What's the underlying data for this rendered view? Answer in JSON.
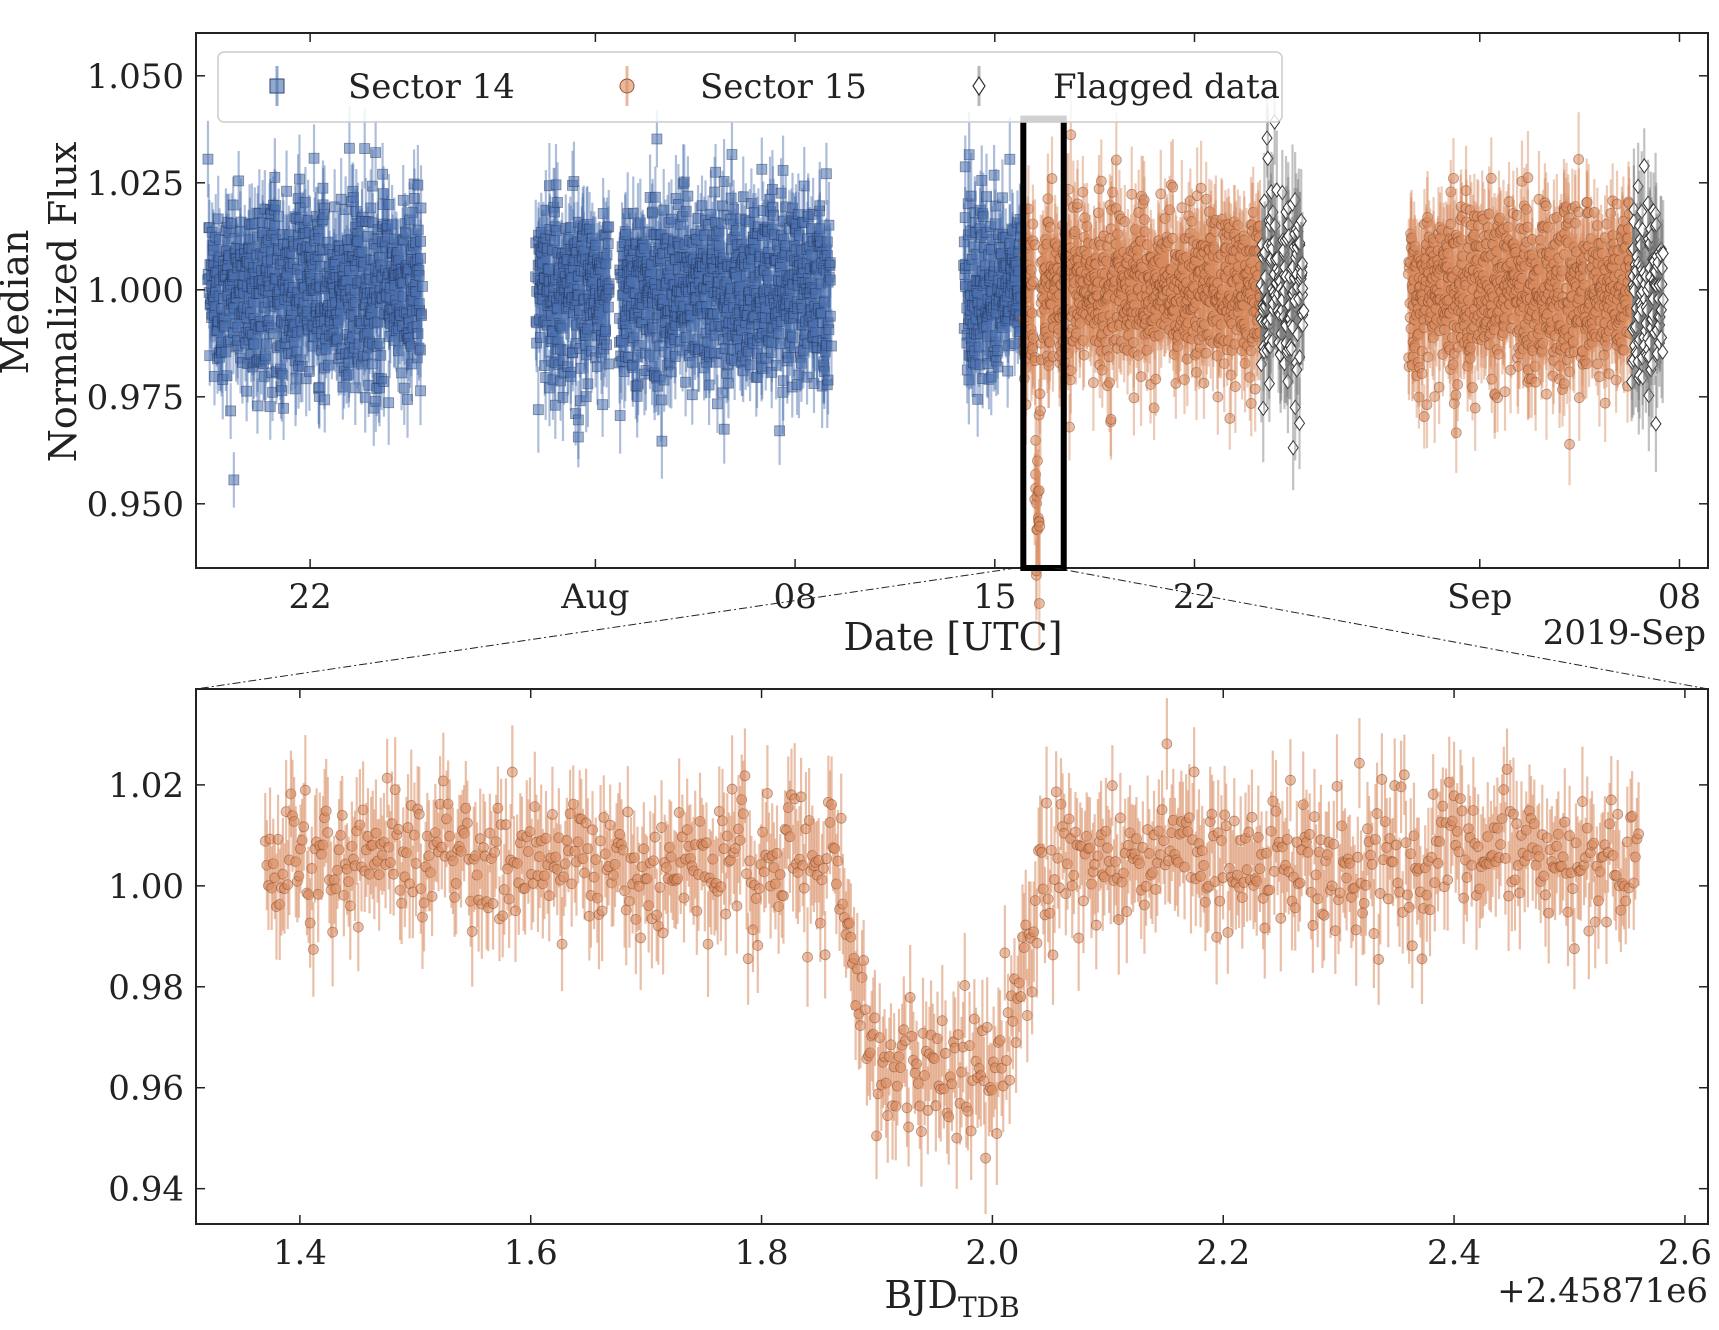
{
  "chart_data": [
    {
      "type": "scatter",
      "title": "",
      "xlabel": "Date [UTC]",
      "ylabel_line1": "Median",
      "ylabel_line2": "Normalized Flux",
      "x_offset_label": "2019-Sep",
      "x_range": [
        "2019-07-18",
        "2019-09-09"
      ],
      "ylim": [
        0.935,
        1.06
      ],
      "xticks": [
        {
          "date": "2019-07-22",
          "label": "22"
        },
        {
          "date": "2019-08-01",
          "label": "Aug"
        },
        {
          "date": "2019-08-08",
          "label": "08"
        },
        {
          "date": "2019-08-15",
          "label": "15"
        },
        {
          "date": "2019-08-22",
          "label": "22"
        },
        {
          "date": "2019-09-01",
          "label": "Sep"
        },
        {
          "date": "2019-09-08",
          "label": "08"
        }
      ],
      "yticks": [
        {
          "value": 0.95,
          "label": "0.950"
        },
        {
          "value": 0.975,
          "label": "0.975"
        },
        {
          "value": 1.0,
          "label": "1.000"
        },
        {
          "value": 1.025,
          "label": "1.025"
        },
        {
          "value": 1.05,
          "label": "1.050"
        }
      ],
      "legend_position": "top",
      "series": [
        {
          "name": "Sector 14",
          "color": "#4a6fae",
          "marker": "square",
          "segments": [
            {
              "start": "2019-07-18T10:00",
              "end": "2019-07-25T22:00"
            },
            {
              "start": "2019-07-29T22:00",
              "end": "2019-08-01T12:00"
            },
            {
              "start": "2019-08-01T20:00",
              "end": "2019-08-09T06:00"
            },
            {
              "start": "2019-08-13T22:00",
              "end": "2019-08-15T22:00"
            }
          ],
          "median_flux": 1.0,
          "scatter_sigma": 0.011,
          "error_bar": 0.008
        },
        {
          "name": "Sector 15",
          "color": "#d88a5e",
          "marker": "circle",
          "segments": [
            {
              "start": "2019-08-16T00:00",
              "end": "2019-08-24T08:00"
            },
            {
              "start": "2019-08-29T12:00",
              "end": "2019-09-06T08:00"
            }
          ],
          "median_flux": 1.0,
          "scatter_sigma": 0.01,
          "error_bar": 0.009,
          "transit": {
            "center": "2019-08-16T12:00",
            "depth": 0.05
          }
        },
        {
          "name": "Flagged data",
          "color": "#444444",
          "marker": "diamond",
          "segments": [
            {
              "start": "2019-08-24T08:00",
              "end": "2019-08-25T20:00"
            },
            {
              "start": "2019-09-06T08:00",
              "end": "2019-09-07T10:00"
            }
          ],
          "median_flux": 1.0,
          "scatter_sigma": 0.012,
          "error_bar": 0.011
        }
      ],
      "highlight_box": {
        "start": "2019-08-16T00:00",
        "end": "2019-08-17T10:00",
        "ymin": 0.935,
        "ymax": 1.04
      }
    },
    {
      "type": "scatter",
      "title": "",
      "xlabel": "BJD",
      "xlabel_subscript": "TDB",
      "x_offset_label": "+2.45871e6",
      "xlim": [
        1.31,
        2.62
      ],
      "ylim": [
        0.933,
        1.039
      ],
      "xticks": [
        {
          "value": 1.4,
          "label": "1.4"
        },
        {
          "value": 1.6,
          "label": "1.6"
        },
        {
          "value": 1.8,
          "label": "1.8"
        },
        {
          "value": 2.0,
          "label": "2.0"
        },
        {
          "value": 2.2,
          "label": "2.2"
        },
        {
          "value": 2.4,
          "label": "2.4"
        },
        {
          "value": 2.6,
          "label": "2.6"
        }
      ],
      "yticks": [
        {
          "value": 0.94,
          "label": "0.94"
        },
        {
          "value": 0.96,
          "label": "0.96"
        },
        {
          "value": 0.98,
          "label": "0.98"
        },
        {
          "value": 1.0,
          "label": "1.00"
        },
        {
          "value": 1.02,
          "label": "1.02"
        }
      ],
      "series": [
        {
          "name": "Sector 15",
          "color": "#d88a5e",
          "marker": "circle",
          "x_start": 1.37,
          "x_end": 2.56,
          "cadence": 0.00139,
          "baseline_flux": 1.005,
          "scatter_sigma": 0.007,
          "error_bar": 0.009,
          "transit": {
            "ingress_start": 1.865,
            "full_start": 1.9,
            "full_end": 2.005,
            "egress_end": 2.05,
            "depth": 0.042
          }
        }
      ]
    }
  ]
}
